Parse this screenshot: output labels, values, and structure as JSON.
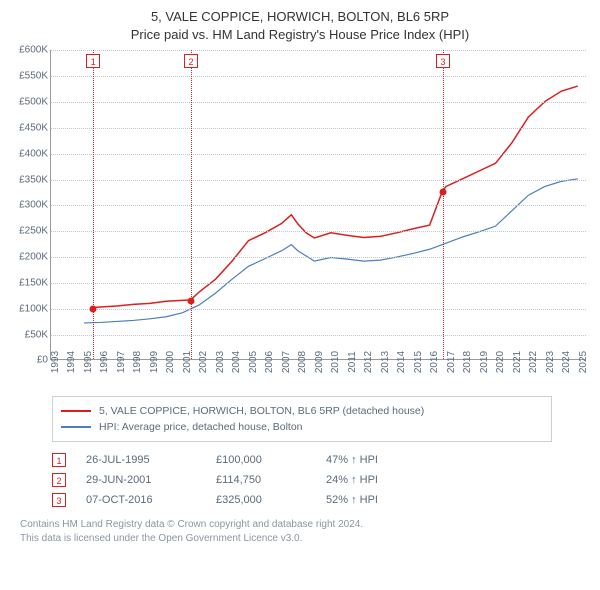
{
  "title": {
    "line1": "5, VALE COPPICE, HORWICH, BOLTON, BL6 5RP",
    "line2": "Price paid vs. HM Land Registry's House Price Index (HPI)",
    "fontsize": 13,
    "color": "#333333"
  },
  "chart": {
    "type": "line",
    "background_color": "#ffffff",
    "grid_color": "#bfc8d0",
    "axis_color": "#999999",
    "tick_color": "#5a6b7b",
    "tick_fontsize": 10,
    "ylim": [
      0,
      600000
    ],
    "ytick_step": 50000,
    "yticks": [
      "£0",
      "£50K",
      "£100K",
      "£150K",
      "£200K",
      "£250K",
      "£300K",
      "£350K",
      "£400K",
      "£450K",
      "£500K",
      "£550K",
      "£600K"
    ],
    "xlim": [
      1993,
      2025.5
    ],
    "xticks": [
      1993,
      1994,
      1995,
      1996,
      1997,
      1998,
      1999,
      2000,
      2001,
      2002,
      2003,
      2004,
      2005,
      2006,
      2007,
      2008,
      2009,
      2010,
      2011,
      2012,
      2013,
      2014,
      2015,
      2016,
      2017,
      2018,
      2019,
      2020,
      2021,
      2022,
      2023,
      2024,
      2025
    ],
    "series": [
      {
        "name": "property",
        "label": "5, VALE COPPICE, HORWICH, BOLTON, BL6 5RP (detached house)",
        "color": "#d9201f",
        "line_width": 1.5,
        "data": [
          [
            1995.56,
            100000
          ],
          [
            1996,
            101000
          ],
          [
            1997,
            103000
          ],
          [
            1998,
            106000
          ],
          [
            1999,
            108000
          ],
          [
            2000,
            112000
          ],
          [
            2001.49,
            114750
          ],
          [
            2002,
            130000
          ],
          [
            2003,
            155000
          ],
          [
            2004,
            190000
          ],
          [
            2005,
            230000
          ],
          [
            2006,
            245000
          ],
          [
            2007,
            263000
          ],
          [
            2007.6,
            280000
          ],
          [
            2008,
            262000
          ],
          [
            2008.5,
            245000
          ],
          [
            2009,
            235000
          ],
          [
            2010,
            245000
          ],
          [
            2011,
            240000
          ],
          [
            2012,
            236000
          ],
          [
            2013,
            238000
          ],
          [
            2014,
            245000
          ],
          [
            2015,
            253000
          ],
          [
            2016,
            260000
          ],
          [
            2016.77,
            325000
          ],
          [
            2017,
            335000
          ],
          [
            2018,
            350000
          ],
          [
            2019,
            365000
          ],
          [
            2020,
            380000
          ],
          [
            2021,
            420000
          ],
          [
            2022,
            470000
          ],
          [
            2023,
            500000
          ],
          [
            2024,
            520000
          ],
          [
            2025,
            530000
          ]
        ]
      },
      {
        "name": "hpi",
        "label": "HPI: Average price, detached house, Bolton",
        "color": "#4a7fc0",
        "line_width": 1.2,
        "data": [
          [
            1995,
            70000
          ],
          [
            1996,
            71000
          ],
          [
            1997,
            73000
          ],
          [
            1998,
            75000
          ],
          [
            1999,
            78000
          ],
          [
            2000,
            82000
          ],
          [
            2001,
            90000
          ],
          [
            2002,
            105000
          ],
          [
            2003,
            128000
          ],
          [
            2004,
            155000
          ],
          [
            2005,
            180000
          ],
          [
            2006,
            195000
          ],
          [
            2007,
            210000
          ],
          [
            2007.6,
            222000
          ],
          [
            2008,
            210000
          ],
          [
            2009,
            190000
          ],
          [
            2010,
            197000
          ],
          [
            2011,
            194000
          ],
          [
            2012,
            190000
          ],
          [
            2013,
            192000
          ],
          [
            2014,
            198000
          ],
          [
            2015,
            205000
          ],
          [
            2016,
            213000
          ],
          [
            2017,
            225000
          ],
          [
            2018,
            237000
          ],
          [
            2019,
            247000
          ],
          [
            2020,
            258000
          ],
          [
            2021,
            288000
          ],
          [
            2022,
            318000
          ],
          [
            2023,
            335000
          ],
          [
            2024,
            345000
          ],
          [
            2025,
            350000
          ]
        ]
      }
    ],
    "markers": [
      {
        "n": "1",
        "x": 1995.56,
        "y": 100000,
        "color": "#d9201f"
      },
      {
        "n": "2",
        "x": 2001.49,
        "y": 114750,
        "color": "#d9201f"
      },
      {
        "n": "3",
        "x": 2016.77,
        "y": 325000,
        "color": "#d9201f"
      }
    ]
  },
  "legend": {
    "border_color": "#c8d0d8",
    "fontsize": 10.5,
    "items": [
      {
        "color": "#d9201f",
        "label": "5, VALE COPPICE, HORWICH, BOLTON, BL6 5RP (detached house)"
      },
      {
        "color": "#4a7fc0",
        "label": "HPI: Average price, detached house, Bolton"
      }
    ]
  },
  "sales": [
    {
      "n": "1",
      "date": "26-JUL-1995",
      "price": "£100,000",
      "hpi": "47% ↑ HPI",
      "color": "#d9201f"
    },
    {
      "n": "2",
      "date": "29-JUN-2001",
      "price": "£114,750",
      "hpi": "24% ↑ HPI",
      "color": "#d9201f"
    },
    {
      "n": "3",
      "date": "07-OCT-2016",
      "price": "£325,000",
      "hpi": "52% ↑ HPI",
      "color": "#d9201f"
    }
  ],
  "attribution": {
    "line1": "Contains HM Land Registry data © Crown copyright and database right 2024.",
    "line2": "This data is licensed under the Open Government Licence v3.0.",
    "color": "#8a96a2",
    "fontsize": 10
  }
}
